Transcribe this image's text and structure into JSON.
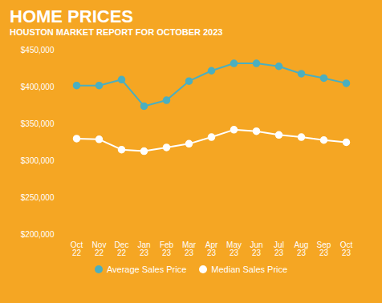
{
  "chart_data": {
    "type": "line",
    "title": "HOME PRICES",
    "subtitle": "HOUSTON MARKET REPORT FOR OCTOBER 2023",
    "categories": [
      "Oct\n22",
      "Nov\n22",
      "Dec\n22",
      "Jan\n23",
      "Feb\n23",
      "Mar\n23",
      "Apr\n23",
      "May\n23",
      "Jun\n23",
      "Jul\n23",
      "Aug\n23",
      "Sep\n23",
      "Oct\n23"
    ],
    "series": [
      {
        "name": "Average Sales Price",
        "color": "#4BAFC0",
        "values": [
          402000,
          402000,
          410000,
          374000,
          382000,
          408000,
          422000,
          432000,
          432000,
          428000,
          418000,
          412000,
          405000
        ]
      },
      {
        "name": "Median Sales Price",
        "color": "#FFFFFF",
        "values": [
          330000,
          329000,
          315000,
          313000,
          318000,
          323000,
          332000,
          342000,
          340000,
          335000,
          332000,
          328000,
          325000
        ]
      }
    ],
    "ylim": [
      200000,
      450000
    ],
    "yticks": [
      {
        "value": 200000,
        "label": "$200,000"
      },
      {
        "value": 250000,
        "label": "$250,000"
      },
      {
        "value": 300000,
        "label": "$300,000"
      },
      {
        "value": 350000,
        "label": "$350,000"
      },
      {
        "value": 400000,
        "label": "$400,000"
      },
      {
        "value": 450000,
        "label": "$450,000"
      }
    ],
    "grid": false,
    "legend": "bottom",
    "marker": "circle"
  }
}
